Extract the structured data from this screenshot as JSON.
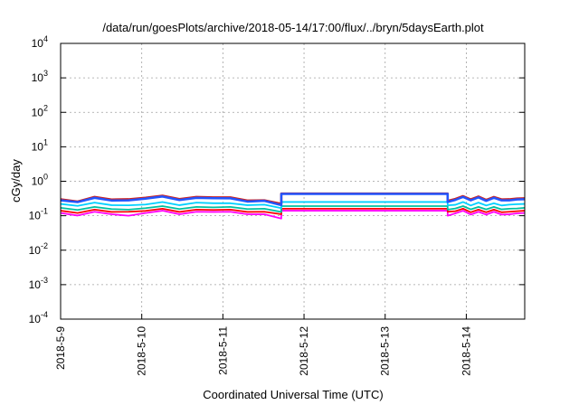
{
  "chart_data": {
    "type": "line",
    "title": "/data/run/goesPlots/archive/2018-05-14/17:00/flux/../bryn/5daysEarth.plot",
    "xlabel": "Coordinated Universal Time (UTC)",
    "ylabel": "cGy/day",
    "yscale": "log",
    "ylim": [
      0.0001,
      10000
    ],
    "xlim_days": [
      0,
      5.72
    ],
    "grid": true,
    "x_ticks": [
      {
        "label": "2018-5-9",
        "day": 0
      },
      {
        "label": "2018-5-10",
        "day": 1
      },
      {
        "label": "2018-5-11",
        "day": 2
      },
      {
        "label": "2018-5-12",
        "day": 3
      },
      {
        "label": "2018-5-13",
        "day": 4
      },
      {
        "label": "2018-5-14",
        "day": 5
      }
    ],
    "y_ticks": [
      {
        "base": "10",
        "exp": "-4",
        "value": 0.0001
      },
      {
        "base": "10",
        "exp": "-3",
        "value": 0.001
      },
      {
        "base": "10",
        "exp": "-2",
        "value": 0.01
      },
      {
        "base": "10",
        "exp": "-1",
        "value": 0.1
      },
      {
        "base": "10",
        "exp": "0",
        "value": 1
      },
      {
        "base": "10",
        "exp": "1",
        "value": 10
      },
      {
        "base": "10",
        "exp": "2",
        "value": 100
      },
      {
        "base": "10",
        "exp": "3",
        "value": 1000
      },
      {
        "base": "10",
        "exp": "4",
        "value": 10000
      }
    ],
    "series": [
      {
        "color": "#ff00ff",
        "gap_level": 0.14,
        "levels": [
          0.12,
          0.11,
          0.13,
          0.12,
          0.1,
          0.13,
          0.14,
          0.12,
          0.13,
          0.14,
          0.13,
          0.12,
          0.11,
          0.09,
          0.1,
          0.13,
          0.14,
          0.12,
          0.13,
          0.12,
          0.13,
          0.12,
          0.11,
          0.13,
          0.12
        ]
      },
      {
        "color": "#ff0000",
        "gap_level": 0.16,
        "levels": [
          0.14,
          0.13,
          0.15,
          0.14,
          0.13,
          0.15,
          0.16,
          0.14,
          0.15,
          0.16,
          0.15,
          0.14,
          0.13,
          0.12,
          0.13,
          0.15,
          0.16,
          0.14,
          0.15,
          0.14,
          0.15,
          0.14,
          0.13,
          0.15,
          0.14
        ]
      },
      {
        "color": "#00c0a0",
        "gap_level": 0.19,
        "levels": [
          0.17,
          0.16,
          0.18,
          0.17,
          0.15,
          0.18,
          0.19,
          0.17,
          0.18,
          0.19,
          0.18,
          0.17,
          0.16,
          0.14,
          0.15,
          0.18,
          0.19,
          0.17,
          0.18,
          0.17,
          0.18,
          0.17,
          0.16,
          0.18,
          0.17
        ]
      },
      {
        "color": "#00d0ff",
        "gap_level": 0.25,
        "levels": [
          0.22,
          0.21,
          0.24,
          0.22,
          0.2,
          0.23,
          0.25,
          0.22,
          0.24,
          0.25,
          0.23,
          0.22,
          0.21,
          0.18,
          0.2,
          0.23,
          0.25,
          0.22,
          0.24,
          0.22,
          0.23,
          0.22,
          0.21,
          0.24,
          0.22
        ]
      },
      {
        "color": "#cc2222",
        "gap_level": 0.44,
        "levels": [
          0.3,
          0.28,
          0.35,
          0.32,
          0.3,
          0.36,
          0.38,
          0.33,
          0.35,
          0.37,
          0.34,
          0.3,
          0.28,
          0.24,
          0.27,
          0.34,
          0.37,
          0.33,
          0.36,
          0.32,
          0.35,
          0.33,
          0.3,
          0.35,
          0.32
        ]
      },
      {
        "color": "#2255ff",
        "gap_level": 0.43,
        "levels": [
          0.28,
          0.27,
          0.33,
          0.3,
          0.28,
          0.34,
          0.36,
          0.31,
          0.33,
          0.35,
          0.32,
          0.28,
          0.27,
          0.22,
          0.25,
          0.32,
          0.35,
          0.31,
          0.34,
          0.3,
          0.33,
          0.31,
          0.28,
          0.33,
          0.3
        ]
      }
    ],
    "segments": {
      "first_end_day": 2.72,
      "gap_start_day": 2.72,
      "gap_end_day": 4.77,
      "last_start_day": 4.77
    }
  }
}
